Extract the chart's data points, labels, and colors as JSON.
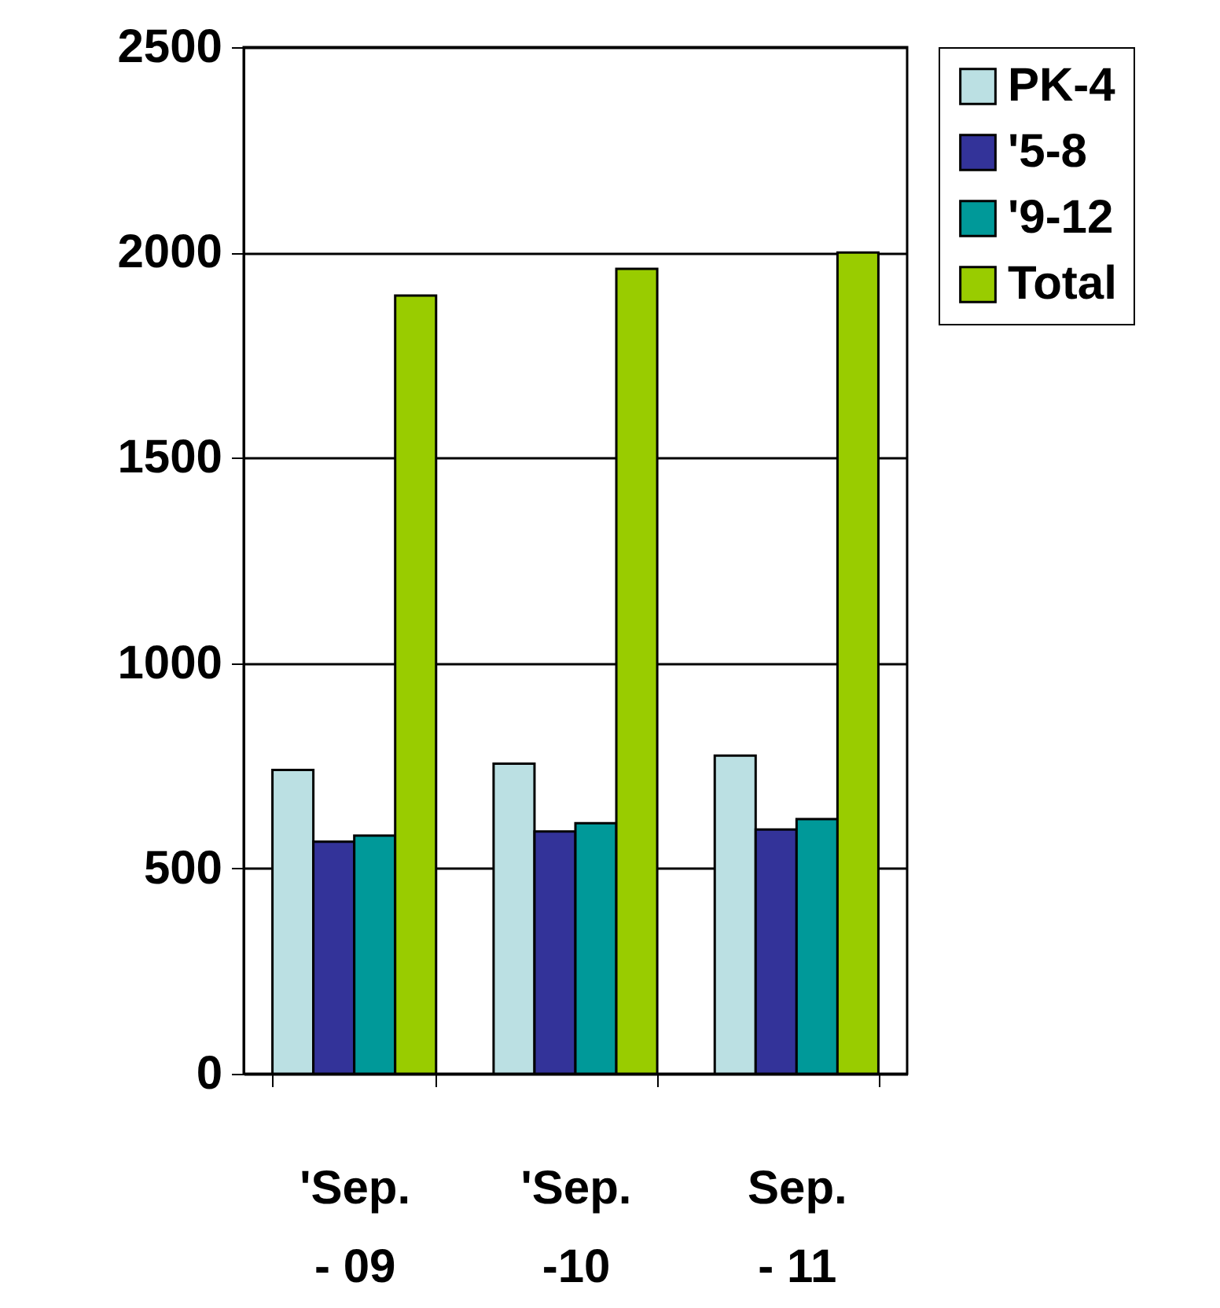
{
  "chart_data": {
    "type": "bar",
    "categories": [
      "'Sep.\n- 09",
      "'Sep.\n-10",
      "Sep.\n- 11"
    ],
    "series": [
      {
        "name": "PK-4",
        "color": "#bbe0e3",
        "values": [
          740,
          755,
          775
        ]
      },
      {
        "name": "'5-8",
        "color": "#333399",
        "values": [
          565,
          590,
          595
        ]
      },
      {
        "name": "'9-12",
        "color": "#009999",
        "values": [
          580,
          610,
          620
        ]
      },
      {
        "name": "Total",
        "color": "#99cc00",
        "values": [
          1895,
          1960,
          2000
        ]
      }
    ],
    "ylim": [
      0,
      2500
    ],
    "yticks": [
      0,
      500,
      1000,
      1500,
      2000,
      2500
    ],
    "grid": "y",
    "legend": "right"
  }
}
